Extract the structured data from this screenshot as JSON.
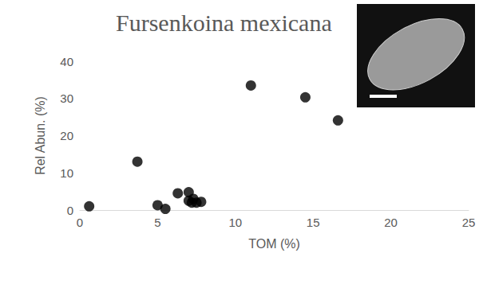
{
  "chart_data": {
    "type": "scatter",
    "title": "Fursenkoina mexicana",
    "x_label": "TOM (%)",
    "y_label": "Rel Abun. (%)",
    "x": [
      0.6,
      3.7,
      5.0,
      5.5,
      6.3,
      7.0,
      7.0,
      7.2,
      7.3,
      7.5,
      7.8,
      11.0,
      14.5,
      16.6
    ],
    "values": [
      1.0,
      13.0,
      1.3,
      0.3,
      4.5,
      4.8,
      2.5,
      2.0,
      3.0,
      2.0,
      2.2,
      33.5,
      30.3,
      24.1
    ],
    "color": "#000000",
    "marker": "circle",
    "xlim": [
      0,
      25
    ],
    "xticks": [
      0,
      5,
      10,
      15,
      20,
      25
    ],
    "ylim": [
      0,
      40
    ],
    "yticks": [
      0,
      10,
      20,
      30,
      40
    ],
    "grid": false
  }
}
